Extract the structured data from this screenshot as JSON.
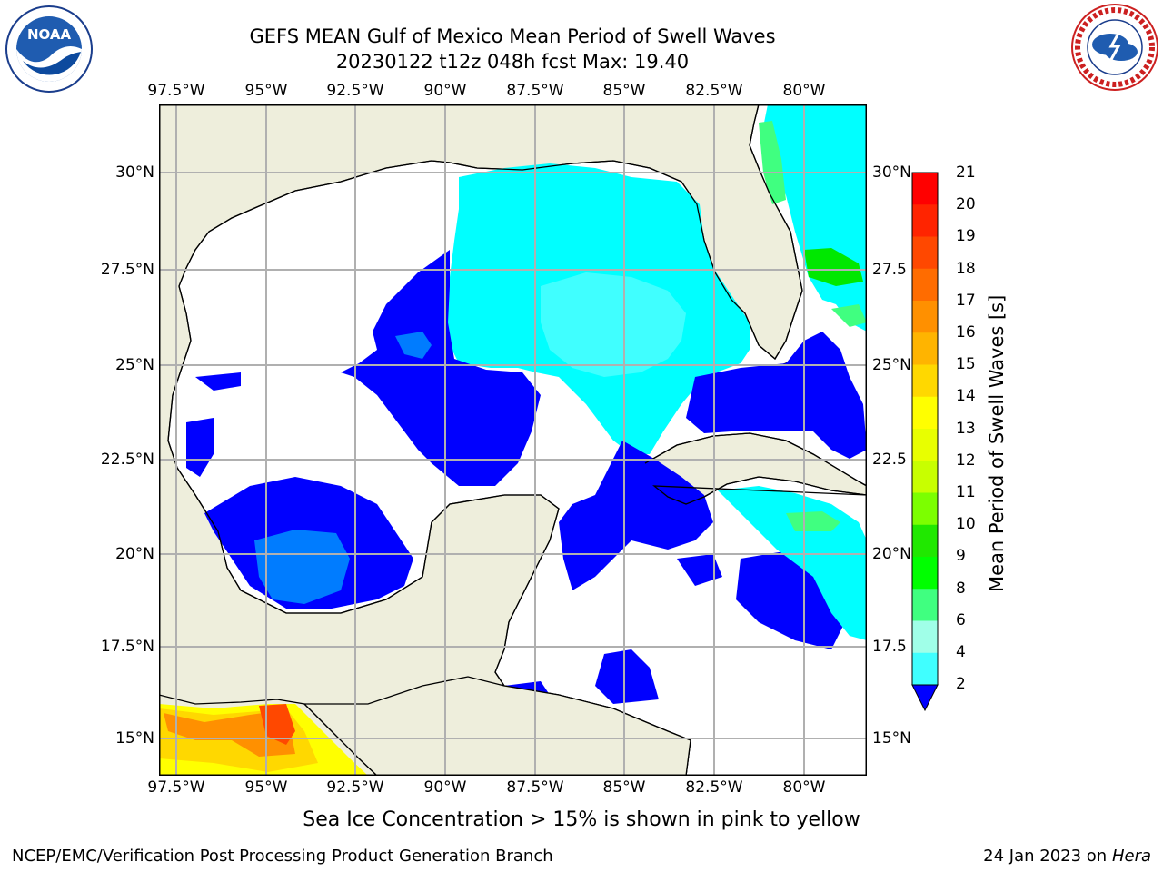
{
  "title": {
    "line1": "GEFS MEAN Gulf of Mexico Mean Period of Swell Waves",
    "line2": "20230122 t12z 048h fcst   Max: 19.40"
  },
  "logos": {
    "left": {
      "icon": "noaa-logo-icon",
      "text": "NOAA"
    },
    "right": {
      "icon": "nws-logo-icon",
      "text": "NATIONAL WEATHER SERVICE"
    }
  },
  "map": {
    "lon_ticks": [
      "97.5°W",
      "95°W",
      "92.5°W",
      "90°W",
      "87.5°W",
      "85°W",
      "82.5°W",
      "80°W"
    ],
    "lat_ticks_left": [
      "30°N",
      "27.5°N",
      "25°N",
      "22.5°N",
      "20°N",
      "17.5°N",
      "15°N"
    ],
    "lat_ticks_right": [
      "30°N",
      "27.5",
      "25°N",
      "22.5",
      "20°N",
      "17.5",
      "15°N"
    ],
    "extent": {
      "lon": [
        -98,
        -78.3
      ],
      "lat": [
        14,
        31.8
      ]
    },
    "colors": {
      "land": "#eeeedc",
      "ocean_low": "#ffffff",
      "coast": "#000000",
      "grid": "#b0b0b0"
    }
  },
  "colorbar": {
    "title": "Mean Period of Swell Waves [s]",
    "labels": [
      "21",
      "20",
      "19",
      "18",
      "17",
      "16",
      "15",
      "14",
      "13",
      "12",
      "11",
      "10",
      "9",
      "8",
      "6",
      "4",
      "2"
    ],
    "colors": [
      "#ff0000",
      "#ff2400",
      "#ff4800",
      "#ff6c00",
      "#ff9000",
      "#ffb400",
      "#ffd800",
      "#ffff00",
      "#e8ff00",
      "#c8ff00",
      "#7cff00",
      "#20e800",
      "#00ff00",
      "#40ff80",
      "#a0ffe8",
      "#40ffff",
      "#00e8ff",
      "#007cff"
    ],
    "under_color": "#0000ff"
  },
  "caption": "Sea Ice Concentration > 15% is shown in pink to yellow",
  "footer": {
    "left": "NCEP/EMC/Verification Post Processing Product Generation Branch",
    "right_date": "24 Jan 2023 on ",
    "right_machine": "Hera"
  }
}
